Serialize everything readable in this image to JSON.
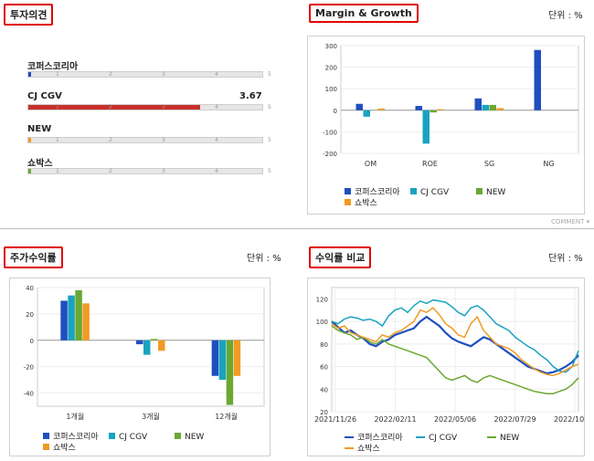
{
  "colors": {
    "kospi": "#1f4fbf",
    "cgv": "#19a3c0",
    "new": "#6aa832",
    "sobax": "#f29a23",
    "red": "#c9302c"
  },
  "opinion": {
    "title": "투자의견",
    "ticks": [
      "1",
      "2",
      "3",
      "4",
      "5"
    ],
    "rows": [
      {
        "name": "코퍼스코리아",
        "value": null,
        "fill": 0.0,
        "color": "#1f4fbf",
        "shown": ""
      },
      {
        "name": "CJ CGV",
        "value": 3.67,
        "fill": 0.734,
        "color": "#c9302c",
        "shown": "3.67"
      },
      {
        "name": "NEW",
        "value": null,
        "fill": 0.0,
        "color": "#f29a23",
        "shown": ""
      },
      {
        "name": "쇼박스",
        "value": null,
        "fill": 0.0,
        "color": "#6aa832",
        "shown": ""
      }
    ]
  },
  "margin": {
    "title": "Margin & Growth",
    "unit": "단위 : %",
    "comment": "COMMENT"
  },
  "price": {
    "title": "주가수익률",
    "unit": "단위 : %"
  },
  "returns": {
    "title": "수익률 비교",
    "unit": "단위 : %"
  },
  "chart_data": [
    {
      "id": "margin",
      "type": "bar",
      "title": "Margin & Growth",
      "categories": [
        "OM",
        "ROE",
        "SG",
        "NG"
      ],
      "ylim": [
        -200,
        300
      ],
      "yticks": [
        -200,
        -100,
        0,
        100,
        200,
        300
      ],
      "series": [
        {
          "name": "코퍼스코리아",
          "color": "#1f4fbf",
          "values": [
            30,
            20,
            55,
            280
          ]
        },
        {
          "name": "CJ CGV",
          "color": "#19a3c0",
          "values": [
            -30,
            -155,
            25,
            0
          ]
        },
        {
          "name": "NEW",
          "color": "#6aa832",
          "values": [
            0,
            -10,
            25,
            0
          ]
        },
        {
          "name": "쇼박스",
          "color": "#f29a23",
          "values": [
            8,
            5,
            10,
            0
          ]
        }
      ]
    },
    {
      "id": "price",
      "type": "bar",
      "title": "주가수익률",
      "categories": [
        "1개월",
        "3개월",
        "12개월"
      ],
      "ylim": [
        -50,
        40
      ],
      "yticks": [
        -40,
        -20,
        0,
        20,
        40
      ],
      "series": [
        {
          "name": "코퍼스코리아",
          "color": "#1f4fbf",
          "values": [
            30,
            -3,
            -27
          ]
        },
        {
          "name": "CJ CGV",
          "color": "#19a3c0",
          "values": [
            34,
            -11,
            -30
          ]
        },
        {
          "name": "NEW",
          "color": "#6aa832",
          "values": [
            38,
            1,
            -49
          ]
        },
        {
          "name": "쇼박스",
          "color": "#f29a23",
          "values": [
            28,
            -8,
            -27
          ]
        }
      ]
    },
    {
      "id": "returns",
      "type": "line",
      "title": "수익률 비교",
      "xticks": [
        "2021/11/26",
        "2022/02/11",
        "2022/05/06",
        "2022/07/29",
        "2022/10/21"
      ],
      "ylim": [
        20,
        130
      ],
      "yticks": [
        20,
        40,
        60,
        80,
        100,
        120
      ],
      "series": [
        {
          "name": "코퍼스코리아",
          "color": "#1f4fbf",
          "values": [
            100,
            95,
            90,
            92,
            88,
            85,
            80,
            78,
            82,
            84,
            88,
            90,
            92,
            94,
            100,
            104,
            100,
            96,
            90,
            85,
            82,
            80,
            78,
            82,
            86,
            84,
            80,
            76,
            72,
            68,
            64,
            60,
            58,
            56,
            54,
            55,
            57,
            60,
            64,
            70
          ]
        },
        {
          "name": "CJ CGV",
          "color": "#19a3c0",
          "values": [
            100,
            98,
            102,
            104,
            103,
            101,
            102,
            100,
            96,
            105,
            110,
            112,
            108,
            114,
            118,
            116,
            119,
            118,
            117,
            113,
            108,
            105,
            112,
            114,
            110,
            104,
            98,
            95,
            92,
            86,
            82,
            78,
            75,
            70,
            66,
            60,
            56,
            55,
            60,
            74
          ]
        },
        {
          "name": "NEW",
          "color": "#6aa832",
          "values": [
            96,
            92,
            90,
            88,
            84,
            86,
            82,
            80,
            84,
            80,
            78,
            76,
            74,
            72,
            70,
            68,
            62,
            56,
            50,
            48,
            50,
            52,
            48,
            46,
            50,
            52,
            50,
            48,
            46,
            44,
            42,
            40,
            38,
            37,
            36,
            36,
            38,
            40,
            44,
            50
          ]
        },
        {
          "name": "쇼박스",
          "color": "#f29a23",
          "values": [
            98,
            94,
            96,
            90,
            88,
            86,
            84,
            82,
            88,
            86,
            90,
            92,
            96,
            100,
            110,
            108,
            112,
            106,
            98,
            94,
            88,
            86,
            98,
            104,
            92,
            86,
            80,
            78,
            76,
            72,
            66,
            62,
            58,
            55,
            53,
            52,
            54,
            57,
            60,
            62
          ]
        }
      ]
    }
  ],
  "legend": [
    {
      "name": "코퍼스코리아",
      "color": "#1f4fbf"
    },
    {
      "name": "CJ CGV",
      "color": "#19a3c0"
    },
    {
      "name": "NEW",
      "color": "#6aa832"
    },
    {
      "name": "쇼박스",
      "color": "#f29a23"
    }
  ]
}
